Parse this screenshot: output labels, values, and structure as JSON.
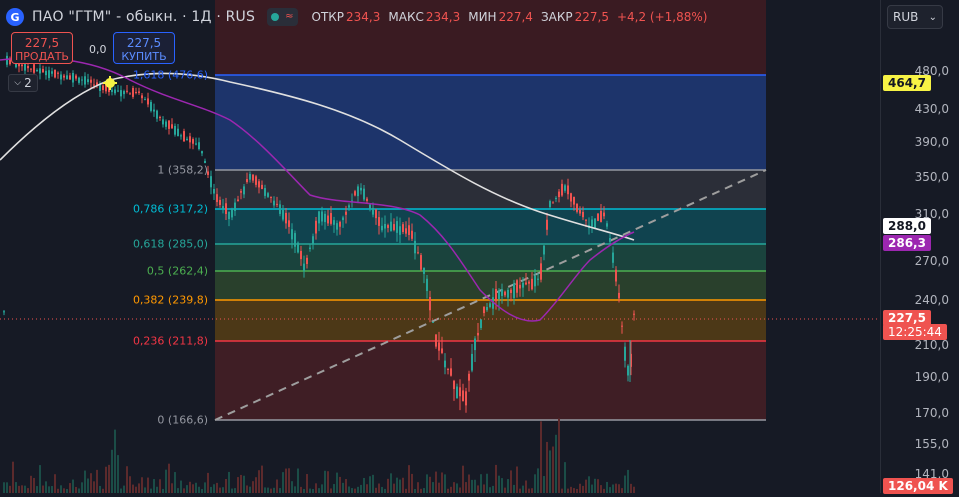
{
  "header": {
    "logo_letter": "G",
    "title": "ПАО \"ГТМ\" - обыкн. · 1Д · RUS",
    "ohlc": [
      {
        "key": "ОТКР",
        "value": "234,3"
      },
      {
        "key": "МАКС",
        "value": "234,3"
      },
      {
        "key": "МИН",
        "value": "227,4"
      },
      {
        "key": "ЗАКР",
        "value": "227,5"
      },
      {
        "key": "",
        "value": "+4,2 (+1,88%)"
      }
    ]
  },
  "trade": {
    "sell_price": "227,5",
    "sell_label": "ПРОДАТЬ",
    "spread": "0,0",
    "buy_price": "227,5",
    "buy_label": "КУПИТЬ"
  },
  "indicator_counter": "2",
  "currency": "RUB",
  "price_axis": {
    "ticks": [
      "480,0",
      "430,0",
      "390,0",
      "350,0",
      "310,0",
      "270,0",
      "240,0",
      "210,0",
      "190,0",
      "170,0",
      "155,0",
      "141,0"
    ],
    "tags": [
      {
        "text": "464,7",
        "bg": "#f7f345",
        "fg": "#131722"
      },
      {
        "text": "288,0",
        "bg": "#ffffff",
        "fg": "#131722"
      },
      {
        "text": "286,3",
        "bg": "#9c27b0",
        "fg": "#ffffff"
      },
      {
        "text": "227,5",
        "bg": "#ef5350",
        "fg": "#ffffff"
      },
      {
        "text": "12:25:44",
        "bg": "#ef5350",
        "fg": "#ffffff"
      },
      {
        "text": "126,04 K",
        "bg": "#ef5350",
        "fg": "#ffffff"
      }
    ]
  },
  "fib_levels": [
    {
      "label": "1,618 (476,6)",
      "color": "#2962ff"
    },
    {
      "label": "1 (358,2)",
      "color": "#9598a1"
    },
    {
      "label": "0,786 (317,2)",
      "color": "#00bcd4"
    },
    {
      "label": "0,618 (285,0)",
      "color": "#26a69a"
    },
    {
      "label": "0,5 (262,4)",
      "color": "#4caf50"
    },
    {
      "label": "0,382 (239,8)",
      "color": "#ff9800"
    },
    {
      "label": "0,236 (211,8)",
      "color": "#f23645"
    },
    {
      "label": "0 (166,6)",
      "color": "#9598a1"
    }
  ],
  "colors": {
    "up": "#26a69a",
    "down": "#ef5350",
    "ma_white": "#e0e0e0",
    "ma_purple": "#9c27b0"
  }
}
